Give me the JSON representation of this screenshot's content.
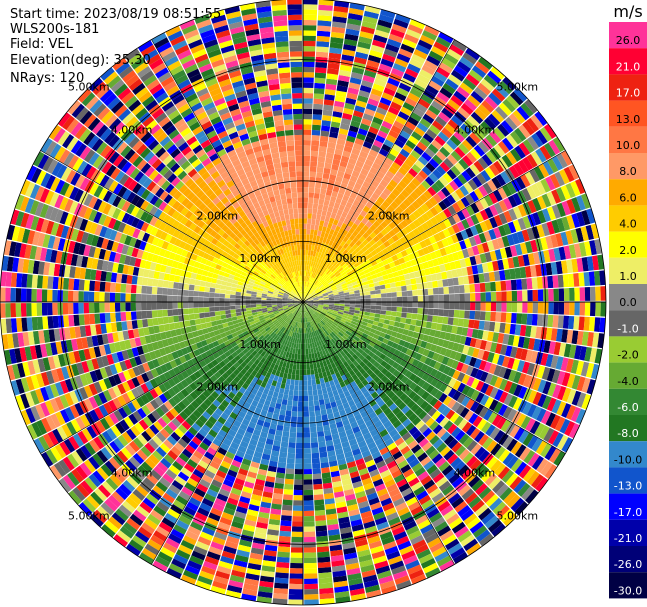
{
  "header": {
    "start_time": "Start time: 2023/08/19 08:51:55",
    "instrument": "WLS200s-181",
    "field": "Field: VEL",
    "elevation": "Elevation(deg): 35.30",
    "nrays": "NRays: 120"
  },
  "colorbar": {
    "unit": "m/s",
    "ticks": [
      "26.0",
      "21.0",
      "17.0",
      "13.0",
      "10.0",
      "8.0",
      "6.0",
      "4.0",
      "2.0",
      "1.0",
      "0.0",
      "-1.0",
      "-2.0",
      "-4.0",
      "-6.0",
      "-8.0",
      "-10.0",
      "-13.0",
      "-17.0",
      "-21.0",
      "-26.0",
      "-30.0"
    ],
    "colors": [
      "#ff3399",
      "#ff0033",
      "#ee2211",
      "#ff5522",
      "#ff7744",
      "#ff9966",
      "#ffaa00",
      "#ffcc00",
      "#ffff00",
      "#eeee66",
      "#888888",
      "#666666",
      "#99cc33",
      "#66aa33",
      "#338833",
      "#227722",
      "#3388cc",
      "#1155cc",
      "#0000ff",
      "#0000aa",
      "#000077",
      "#000044"
    ]
  },
  "chart_data": {
    "type": "heatmap",
    "subtype": "ppi-polar",
    "field": "VEL",
    "unit": "m/s",
    "nrays": 120,
    "elevation_deg": 35.3,
    "max_range_km": 5.0,
    "range_rings": [
      {
        "label": "1.00km",
        "km": 1.0
      },
      {
        "label": "2.00km",
        "km": 2.0
      },
      {
        "label": "4.00km",
        "km": 4.0
      },
      {
        "label": "5.00km",
        "km": 5.0
      }
    ],
    "ring_labels_shown": [
      {
        "label": "1.00km",
        "km": 1.0,
        "bearing_deg": 45
      },
      {
        "label": "1.00km",
        "km": 1.0,
        "bearing_deg": 135
      },
      {
        "label": "1.00km",
        "km": 1.0,
        "bearing_deg": 225
      },
      {
        "label": "1.00km",
        "km": 1.0,
        "bearing_deg": 315
      },
      {
        "label": "2.00km",
        "km": 2.0,
        "bearing_deg": 45
      },
      {
        "label": "2.00km",
        "km": 2.0,
        "bearing_deg": 135
      },
      {
        "label": "2.00km",
        "km": 2.0,
        "bearing_deg": 225
      },
      {
        "label": "2.00km",
        "km": 2.0,
        "bearing_deg": 315
      },
      {
        "label": "4.00km",
        "km": 4.0,
        "bearing_deg": 45
      },
      {
        "label": "4.00km",
        "km": 4.0,
        "bearing_deg": 135
      },
      {
        "label": "4.00km",
        "km": 4.0,
        "bearing_deg": 225
      },
      {
        "label": "4.00km",
        "km": 4.0,
        "bearing_deg": 315
      },
      {
        "label": "5.00km",
        "km": 5.0,
        "bearing_deg": 45
      },
      {
        "label": "5.00km",
        "km": 5.0,
        "bearing_deg": 135
      },
      {
        "label": "5.00km",
        "km": 5.0,
        "bearing_deg": 225
      },
      {
        "label": "5.00km",
        "km": 5.0,
        "bearing_deg": 315
      }
    ],
    "valid_data_range_km": 2.7,
    "velocity_pattern": "north-half positive (away), south-half negative (toward); noisy speckle beyond ~2.7 km",
    "peak_velocity_ms": 10.0,
    "colorscale_ms": [
      26.0,
      21.0,
      17.0,
      13.0,
      10.0,
      8.0,
      6.0,
      4.0,
      2.0,
      1.0,
      0.0,
      -1.0,
      -2.0,
      -4.0,
      -6.0,
      -8.0,
      -10.0,
      -13.0,
      -17.0,
      -21.0,
      -26.0,
      -30.0
    ]
  }
}
